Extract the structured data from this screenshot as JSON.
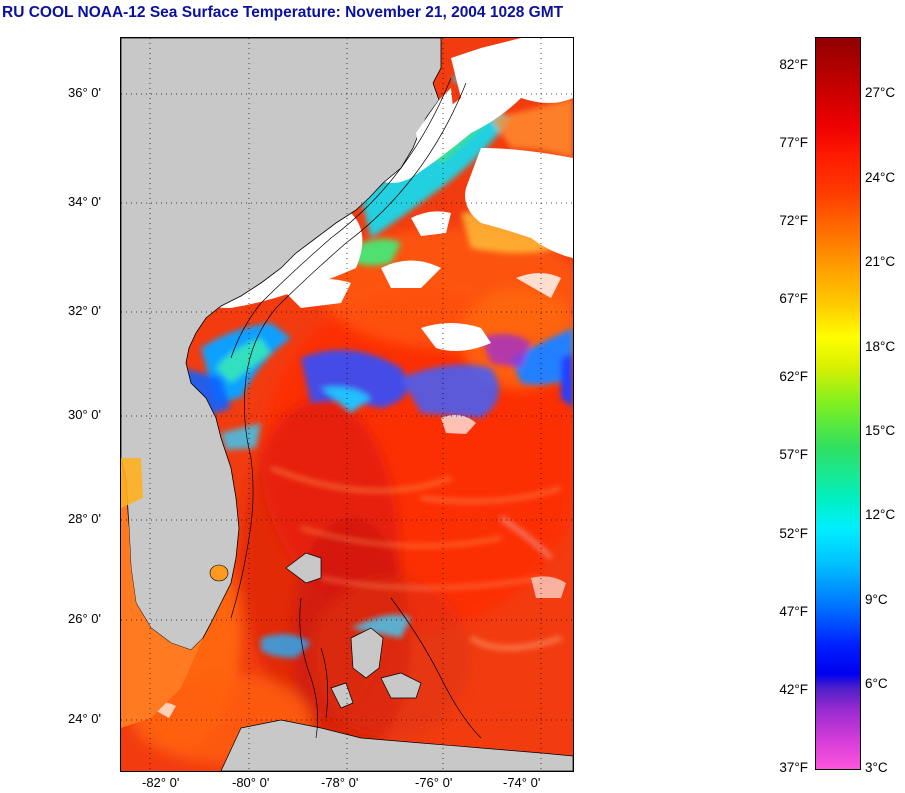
{
  "title": "RU COOL  NOAA-12  Sea Surface Temperature:  November 21, 2004 1028 GMT",
  "map": {
    "latitude_labels": [
      "36° 0'",
      "34° 0'",
      "32° 0'",
      "30° 0'",
      "28° 0'",
      "26° 0'",
      "24° 0'"
    ],
    "longitude_labels": [
      "-82° 0'",
      "-80° 0'",
      "-78° 0'",
      "-76° 0'",
      "-74° 0'"
    ],
    "land_color": "#c8c8c8",
    "cloud_color": "#ffffff",
    "grid": "dotted"
  },
  "colorbar": {
    "fahrenheit_labels": [
      "82°F",
      "77°F",
      "72°F",
      "67°F",
      "62°F",
      "57°F",
      "52°F",
      "47°F",
      "42°F",
      "37°F"
    ],
    "celsius_labels": [
      "27°C",
      "24°C",
      "21°C",
      "18°C",
      "15°C",
      "12°C",
      "9°C",
      "6°C",
      "3°C"
    ]
  }
}
